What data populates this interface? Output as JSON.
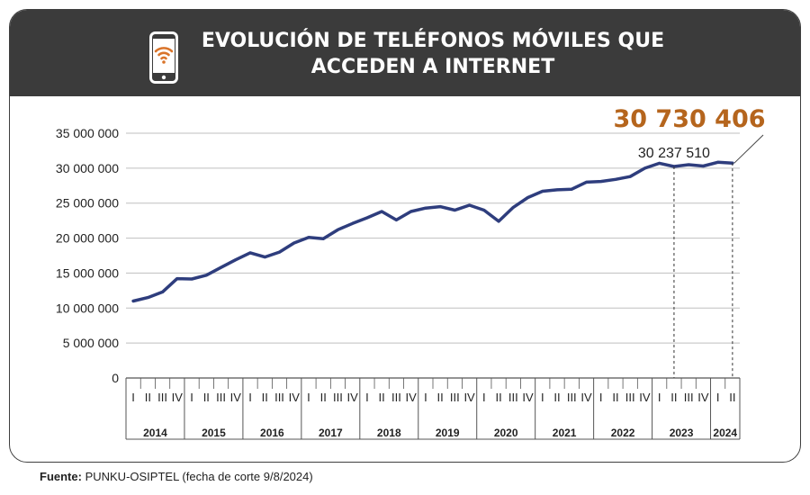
{
  "header": {
    "title_line1": "EVOLUCIÓN DE TELÉFONOS MÓVILES QUE",
    "title_line2": "ACCEDEN A INTERNET",
    "icon": "smartphone-wifi-icon"
  },
  "colors": {
    "header_bg": "#3b3b3b",
    "line": "#2e3d7d",
    "highlight": "#b5651d",
    "grid": "#bfbfbf"
  },
  "chart_data": {
    "type": "line",
    "title": "EVOLUCIÓN DE TELÉFONOS MÓVILES QUE ACCEDEN A INTERNET",
    "ylim": [
      0,
      35000000
    ],
    "yticks": [
      "0",
      "5 000 000",
      "10 000 000",
      "15 000 000",
      "20 000 000",
      "25 000 000",
      "30 000 000",
      "35 000 000"
    ],
    "years": [
      "2014",
      "2015",
      "2016",
      "2017",
      "2018",
      "2019",
      "2020",
      "2021",
      "2022",
      "2023",
      "2024"
    ],
    "quarter_labels": [
      "I",
      "II",
      "III",
      "IV"
    ],
    "categories": [
      "2014-I",
      "2014-II",
      "2014-III",
      "2014-IV",
      "2015-I",
      "2015-II",
      "2015-III",
      "2015-IV",
      "2016-I",
      "2016-II",
      "2016-III",
      "2016-IV",
      "2017-I",
      "2017-II",
      "2017-III",
      "2017-IV",
      "2018-I",
      "2018-II",
      "2018-III",
      "2018-IV",
      "2019-I",
      "2019-II",
      "2019-III",
      "2019-IV",
      "2020-I",
      "2020-II",
      "2020-III",
      "2020-IV",
      "2021-I",
      "2021-II",
      "2021-III",
      "2021-IV",
      "2022-I",
      "2022-II",
      "2022-III",
      "2022-IV",
      "2023-I",
      "2023-II",
      "2023-III",
      "2023-IV",
      "2024-I",
      "2024-II"
    ],
    "values": [
      11000000,
      11500000,
      12300000,
      14200000,
      14150000,
      14700000,
      15800000,
      16900000,
      17900000,
      17300000,
      18000000,
      19300000,
      20100000,
      19900000,
      21200000,
      22100000,
      22900000,
      23800000,
      22600000,
      23800000,
      24300000,
      24500000,
      24000000,
      24700000,
      24000000,
      22400000,
      24400000,
      25800000,
      26700000,
      26900000,
      27000000,
      28000000,
      28100000,
      28400000,
      28800000,
      30000000,
      30700000,
      30237510,
      30500000,
      30300000,
      30850000,
      30730406
    ],
    "annotations": [
      {
        "category": "2023-II",
        "text": "30 237 510",
        "value": 30237510
      },
      {
        "category": "2024-II",
        "text": "30 730 406",
        "value": 30730406
      }
    ]
  },
  "footer": {
    "label": "Fuente:",
    "text": " PUNKU-OSIPTEL (fecha de corte 9/8/2024)"
  }
}
